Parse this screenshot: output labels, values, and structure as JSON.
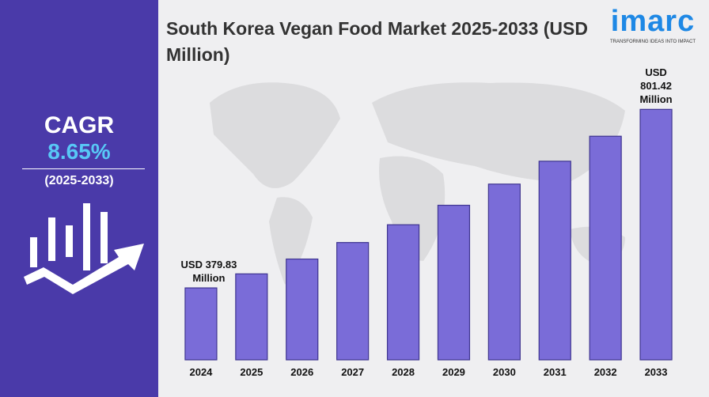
{
  "chart_data": {
    "type": "bar",
    "title": "South Korea Vegan Food Market 2025-2033 (USD Million)",
    "categories": [
      "2024",
      "2025",
      "2026",
      "2027",
      "2028",
      "2029",
      "2030",
      "2031",
      "2032",
      "2033"
    ],
    "values": [
      379.83,
      413,
      448,
      487,
      529,
      575,
      625,
      679,
      738,
      801.42
    ],
    "value_labels": [
      "USD 379.83 Million",
      null,
      null,
      null,
      null,
      null,
      null,
      null,
      null,
      "USD 801.42 Million"
    ],
    "color": "#7a6cd8",
    "ylim": [
      210,
      830
    ]
  },
  "sidebar": {
    "label": "CAGR",
    "value": "8.65%",
    "period": "(2025-2033)"
  },
  "brand": {
    "name": "imarc",
    "tagline": "TRANSFORMING IDEAS INTO IMPACT"
  }
}
